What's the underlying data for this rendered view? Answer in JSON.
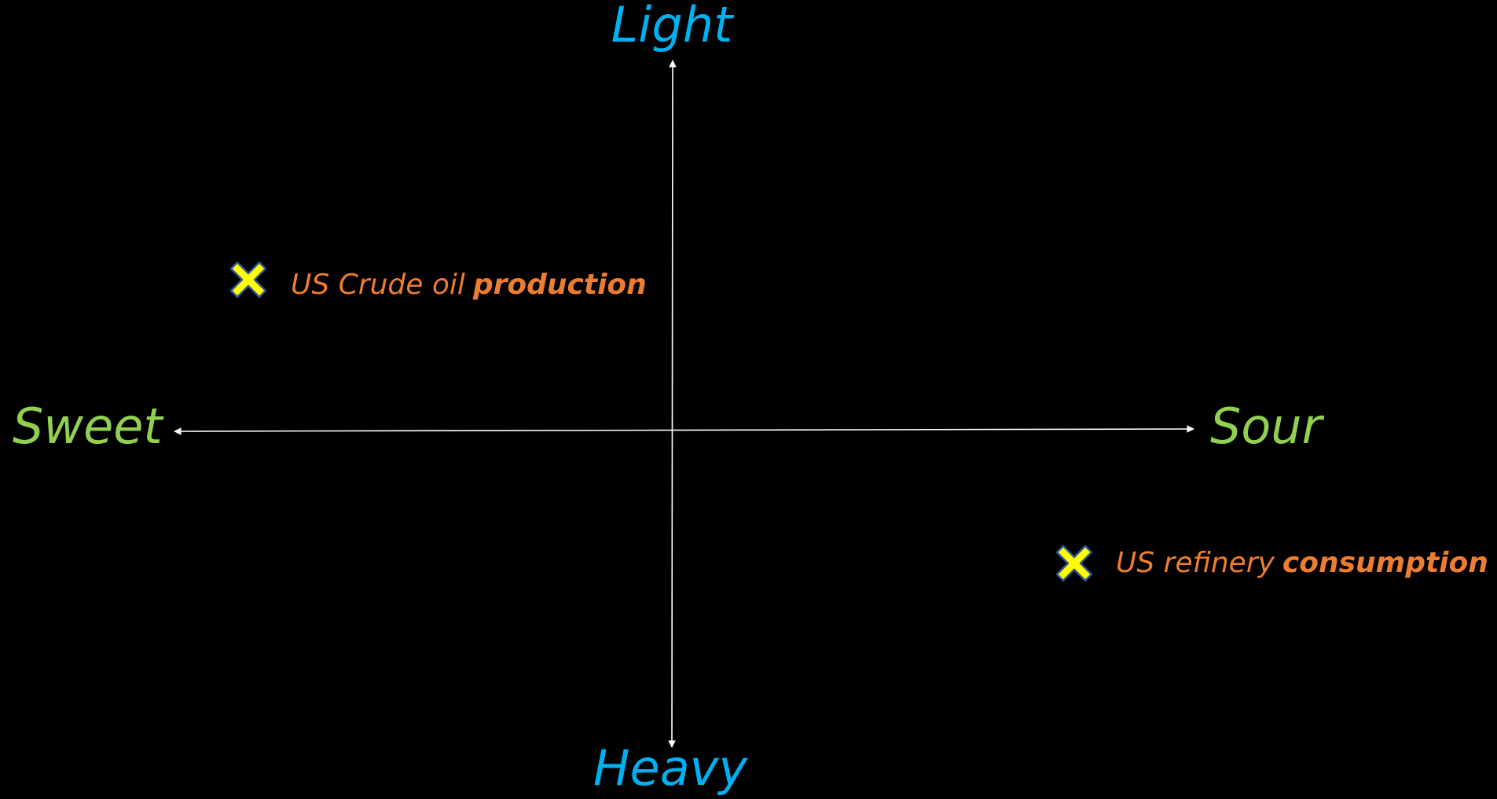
{
  "axes": {
    "top": "Light",
    "bottom": "Heavy",
    "left": "Sweet",
    "right": "Sour"
  },
  "points": [
    {
      "label": "US Crude oil",
      "emphasis": "production"
    },
    {
      "label": "US refinery",
      "emphasis": "consumption"
    }
  ]
}
